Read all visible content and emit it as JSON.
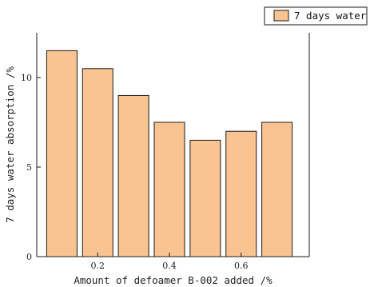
{
  "chart_data": {
    "type": "bar",
    "x": [
      0.1,
      0.2,
      0.3,
      0.4,
      0.5,
      0.6,
      0.7
    ],
    "series": [
      {
        "name": "7 days water",
        "values": [
          11.5,
          10.5,
          9.0,
          7.5,
          6.5,
          7.0,
          7.5
        ]
      }
    ],
    "xlabel": "Amount of defoamer B-002 added /%",
    "ylabel": "7 days water absorption /%",
    "xlim": [
      0.03,
      0.79
    ],
    "ylim": [
      0,
      12.5
    ],
    "xticks": [
      0.2,
      0.4,
      0.6
    ],
    "xtick_labels": [
      "0.2",
      "0.4",
      "0.6"
    ],
    "yticks": [
      0,
      5,
      10
    ],
    "ytick_labels": [
      "0",
      "5",
      "10"
    ],
    "grid": false,
    "legend_position": "top-right",
    "colors": {
      "bar_fill": "#f9c491",
      "bar_stroke": "#1a1a1a",
      "axis": "#1a1a1a"
    }
  }
}
